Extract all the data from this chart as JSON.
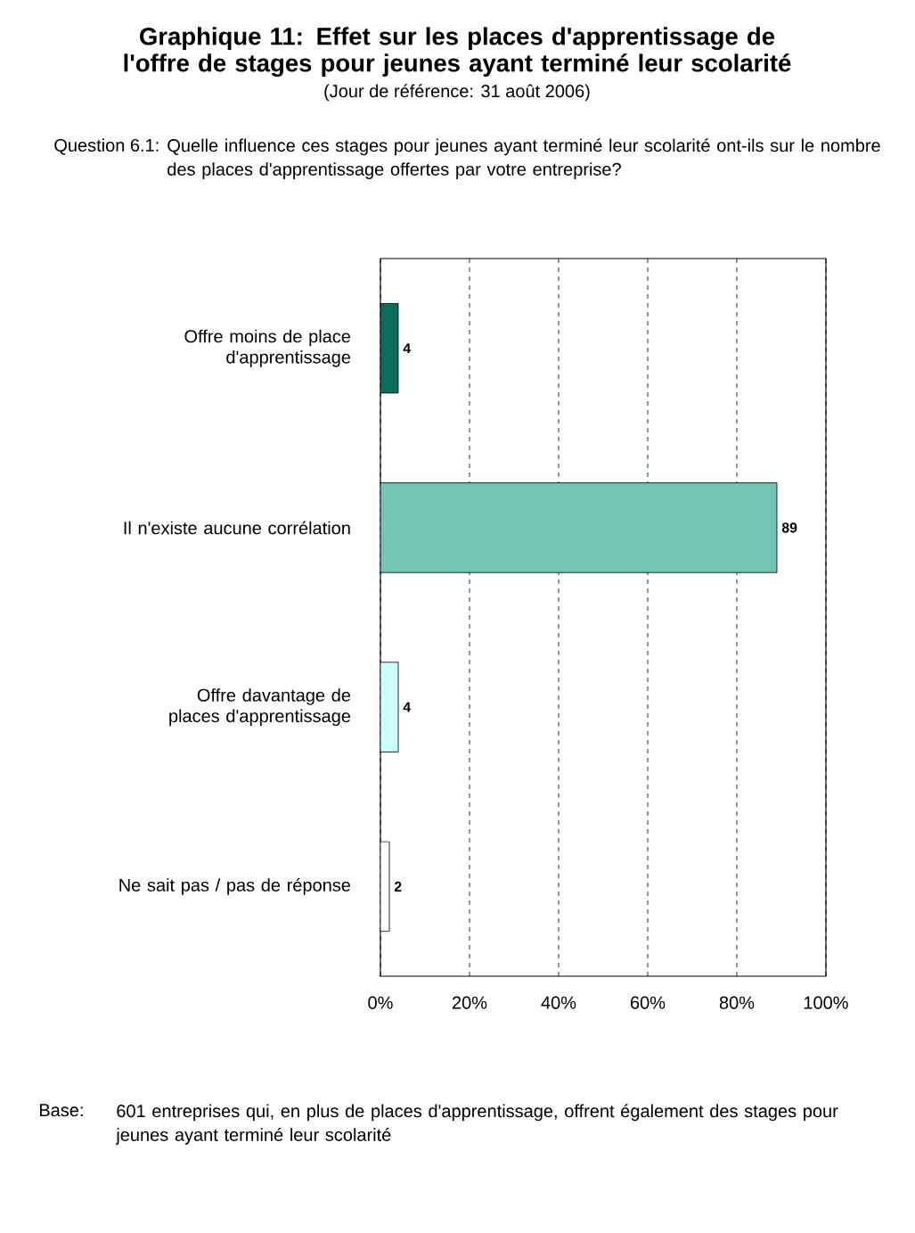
{
  "chart_data": {
    "type": "bar",
    "orientation": "horizontal",
    "title": "Graphique 11: Effet sur les places d'apprentissage de l'offre de stages pour jeunes ayant terminé leur scolarité",
    "subtitle": "(Jour de référence: 31 août 2006)",
    "annotations": [
      "Question 6.1:",
      "Quelle influence ces stages pour jeunes ayant terminé leur scolarité ont-ils sur le nombre des places d'apprentissage offertes par votre entreprise?",
      "Base:",
      "601 entreprises qui, en plus de places d'apprentissage, offrent également des stages pour jeunes ayant terminé leur scolarité"
    ],
    "categories": [
      "Offre moins de place d'apprentissage",
      "Il n'existe aucune corrélation",
      "Offre davantage de places d'apprentissage",
      "Ne sait pas / pas de réponse"
    ],
    "values": [
      4,
      89,
      4,
      2
    ],
    "colors": [
      "#0b6b5c",
      "#72c4b5",
      "#ccffff",
      "#ffffff"
    ],
    "xlim": [
      0,
      100
    ],
    "xticks": [
      {
        "value": 0,
        "label": "0%"
      },
      {
        "value": 20,
        "label": "20%"
      },
      {
        "value": 40,
        "label": "40%"
      },
      {
        "value": 60,
        "label": "60%"
      },
      {
        "value": 80,
        "label": "80%"
      },
      {
        "value": 100,
        "label": "100%"
      }
    ],
    "grid": "x",
    "data_labels": true
  }
}
